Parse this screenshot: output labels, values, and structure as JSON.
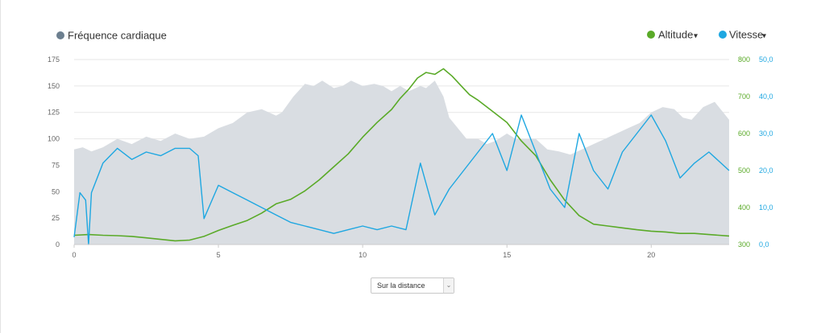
{
  "legend": {
    "heart_rate": "Fréquence cardiaque",
    "altitude": "Altitude",
    "speed": "Vitesse"
  },
  "colors": {
    "heart_rate": "#6c7f8f",
    "heart_rate_area": "#d9dde2",
    "altitude": "#5aaa28",
    "speed": "#1ea7e1",
    "grid": "#e6e6e6"
  },
  "distance_select": {
    "value": "Sur la distance"
  },
  "chart_data": {
    "type": "area",
    "x_ticks": [
      0,
      5,
      10,
      15,
      20
    ],
    "xlim": [
      0,
      22.7
    ],
    "y_left_ticks": [
      0,
      25,
      50,
      75,
      100,
      125,
      150,
      175
    ],
    "y_left_range": [
      0,
      175
    ],
    "y_right_altitude_ticks": [
      "300",
      "400",
      "500",
      "600",
      "700",
      "800"
    ],
    "y_right_altitude_range": [
      300,
      800
    ],
    "y_right_speed_ticks": [
      "0,0",
      "10,0",
      "20,0",
      "30,0",
      "40,0",
      "50,0"
    ],
    "y_right_speed_range": [
      0,
      50
    ],
    "grid": true,
    "legend_position": "top",
    "series": [
      {
        "name": "Fréquence cardiaque",
        "axis": "left",
        "style": "area",
        "x": [
          0,
          0.3,
          0.6,
          1,
          1.5,
          2,
          2.5,
          3,
          3.5,
          4,
          4.5,
          5,
          5.5,
          6,
          6.5,
          7,
          7.2,
          7.6,
          8,
          8.3,
          8.6,
          9,
          9.3,
          9.6,
          10,
          10.4,
          10.7,
          11,
          11.3,
          11.6,
          12,
          12.2,
          12.5,
          12.8,
          13,
          13.3,
          13.6,
          14,
          14.3,
          14.6,
          15,
          15.3,
          15.6,
          16,
          16.4,
          16.8,
          17.2,
          17.6,
          18,
          18.4,
          18.8,
          19.2,
          19.6,
          20,
          20.4,
          20.8,
          21.1,
          21.4,
          21.8,
          22.2,
          22.7
        ],
        "values": [
          90,
          92,
          88,
          92,
          100,
          95,
          102,
          98,
          105,
          100,
          102,
          110,
          115,
          125,
          128,
          122,
          125,
          140,
          152,
          150,
          155,
          148,
          150,
          155,
          150,
          152,
          150,
          145,
          150,
          145,
          150,
          148,
          155,
          140,
          120,
          110,
          100,
          100,
          95,
          98,
          105,
          100,
          100,
          100,
          90,
          88,
          85,
          90,
          95,
          100,
          105,
          110,
          115,
          125,
          130,
          128,
          120,
          118,
          130,
          135,
          118
        ]
      },
      {
        "name": "Altitude",
        "axis": "right_altitude",
        "style": "line",
        "x": [
          0,
          0.5,
          1,
          1.5,
          2,
          2.5,
          3,
          3.5,
          4,
          4.5,
          5,
          5.5,
          6,
          6.5,
          7,
          7.5,
          8,
          8.5,
          9,
          9.5,
          10,
          10.5,
          11,
          11.3,
          11.6,
          11.9,
          12.2,
          12.5,
          12.8,
          13.1,
          13.4,
          13.7,
          14,
          14.5,
          15,
          15.5,
          16,
          16.5,
          17,
          17.5,
          18,
          18.5,
          19,
          19.5,
          20,
          20.5,
          21,
          21.5,
          22,
          22.7
        ],
        "values": [
          325,
          327,
          325,
          324,
          322,
          318,
          314,
          310,
          312,
          322,
          338,
          352,
          365,
          385,
          410,
          422,
          445,
          475,
          510,
          545,
          590,
          630,
          665,
          695,
          720,
          750,
          765,
          760,
          775,
          755,
          730,
          705,
          690,
          660,
          630,
          580,
          540,
          475,
          420,
          378,
          355,
          350,
          345,
          340,
          336,
          334,
          330,
          330,
          327,
          323
        ]
      },
      {
        "name": "Vitesse",
        "axis": "right_speed",
        "style": "line",
        "x": [
          0,
          0.2,
          0.4,
          0.5,
          0.6,
          1,
          1.5,
          2,
          2.5,
          3,
          3.5,
          4,
          4.3,
          4.5,
          5,
          5.5,
          6,
          6.5,
          7,
          7.5,
          8,
          8.5,
          9,
          9.5,
          10,
          10.5,
          11,
          11.5,
          12,
          12.5,
          13,
          13.5,
          14,
          14.5,
          15,
          15.5,
          16,
          16.5,
          17,
          17.5,
          18,
          18.5,
          19,
          19.5,
          20,
          20.5,
          21,
          21.5,
          22,
          22.7
        ],
        "values": [
          2,
          14,
          12,
          0,
          14,
          22,
          26,
          23,
          25,
          24,
          26,
          26,
          24,
          7,
          16,
          14,
          12,
          10,
          8,
          6,
          5,
          4,
          3,
          4,
          5,
          4,
          5,
          4,
          22,
          8,
          15,
          20,
          25,
          30,
          20,
          35,
          25,
          15,
          10,
          30,
          20,
          15,
          25,
          30,
          35,
          28,
          18,
          22,
          25,
          20
        ]
      }
    ]
  }
}
